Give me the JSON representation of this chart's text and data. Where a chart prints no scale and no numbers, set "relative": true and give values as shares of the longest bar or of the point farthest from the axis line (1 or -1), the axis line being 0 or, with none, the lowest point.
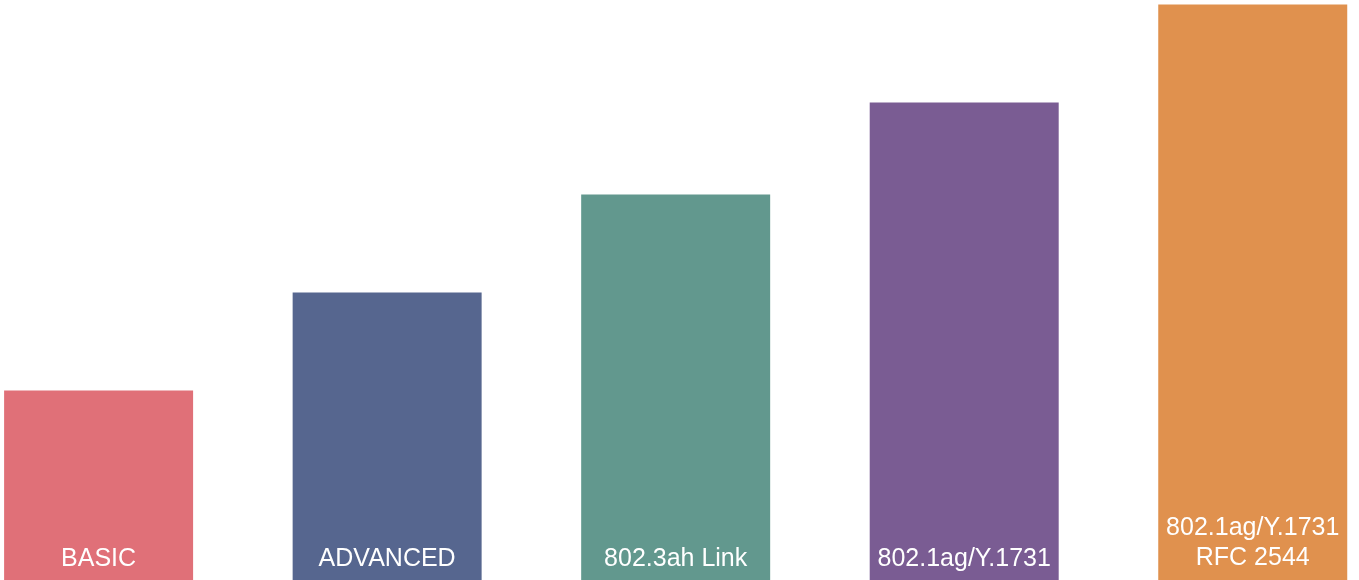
{
  "chart_data": {
    "type": "bar",
    "relative": true,
    "categories": [
      "BASIC",
      "ADVANCED",
      "802.3ah Link",
      "802.1ag/Y.1731",
      "802.1ag/Y.1731\nRFC 2544"
    ],
    "values": [
      0.33,
      0.5,
      0.67,
      0.83,
      1.0
    ],
    "colors": [
      "#e07078",
      "#56668f",
      "#62988e",
      "#7a5c93",
      "#e0914e"
    ]
  }
}
